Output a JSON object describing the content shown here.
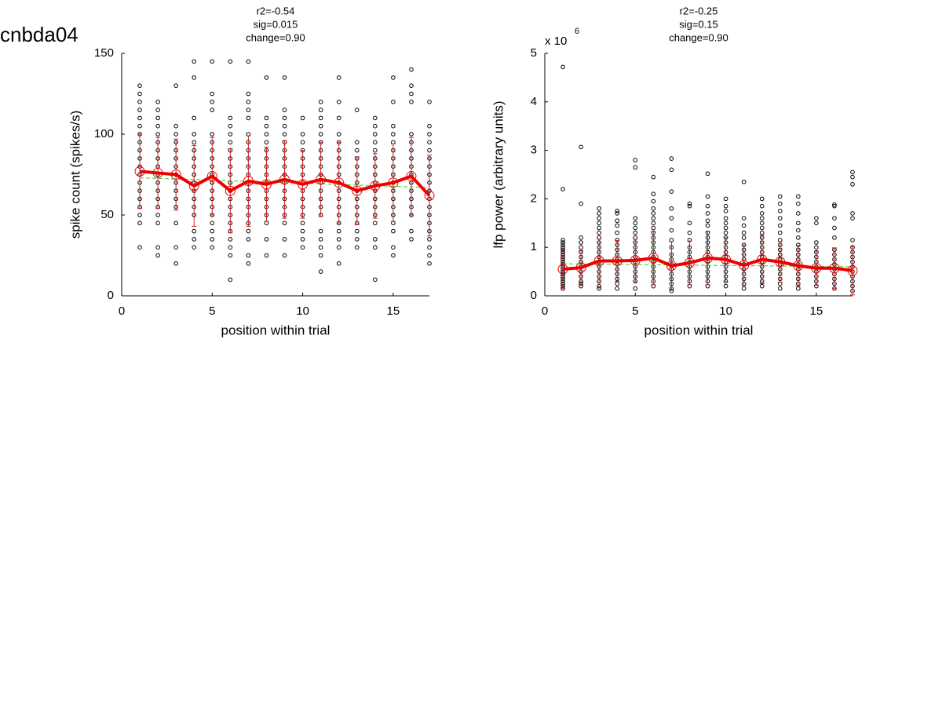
{
  "figure_title": "cnbda04",
  "chart_data": [
    {
      "type": "scatter",
      "title": [
        "r2=-0.54",
        "sig=0.015",
        "change=0.90"
      ],
      "x_label": "position within trial",
      "y_label": "spike count (spikes/s)",
      "xlim": [
        0,
        17
      ],
      "xticks": [
        0,
        5,
        10,
        15
      ],
      "ylim": [
        0,
        150
      ],
      "yticks": [
        0,
        50,
        100,
        150
      ],
      "x": [
        1,
        2,
        3,
        4,
        5,
        6,
        7,
        8,
        9,
        10,
        11,
        12,
        13,
        14,
        15,
        16,
        17
      ],
      "points": [
        [
          30,
          45,
          50,
          55,
          60,
          65,
          70,
          75,
          80,
          85,
          90,
          95,
          100,
          105,
          110,
          115,
          120,
          125,
          130
        ],
        [
          25,
          30,
          45,
          50,
          55,
          60,
          65,
          70,
          75,
          80,
          85,
          90,
          95,
          100,
          105,
          110,
          115,
          120
        ],
        [
          20,
          30,
          45,
          55,
          60,
          65,
          70,
          75,
          80,
          85,
          90,
          95,
          100,
          105,
          130
        ],
        [
          30,
          35,
          40,
          50,
          55,
          60,
          65,
          70,
          75,
          80,
          85,
          90,
          95,
          100,
          110,
          135,
          145
        ],
        [
          30,
          35,
          40,
          45,
          50,
          55,
          60,
          65,
          70,
          75,
          80,
          85,
          90,
          95,
          100,
          115,
          120,
          125,
          145
        ],
        [
          10,
          25,
          30,
          35,
          40,
          45,
          50,
          55,
          60,
          65,
          70,
          75,
          80,
          85,
          90,
          95,
          100,
          105,
          110,
          145
        ],
        [
          20,
          25,
          35,
          40,
          45,
          50,
          55,
          60,
          65,
          70,
          75,
          80,
          85,
          90,
          95,
          100,
          110,
          115,
          120,
          125,
          145
        ],
        [
          25,
          35,
          45,
          50,
          55,
          60,
          65,
          70,
          75,
          80,
          85,
          90,
          95,
          100,
          105,
          110,
          135
        ],
        [
          25,
          35,
          45,
          50,
          55,
          60,
          65,
          70,
          75,
          80,
          85,
          90,
          95,
          100,
          105,
          110,
          115,
          135
        ],
        [
          30,
          35,
          40,
          45,
          50,
          55,
          60,
          65,
          70,
          75,
          80,
          85,
          90,
          95,
          100,
          110
        ],
        [
          15,
          25,
          30,
          35,
          40,
          50,
          55,
          60,
          65,
          70,
          75,
          80,
          85,
          90,
          95,
          100,
          105,
          110,
          115,
          120
        ],
        [
          20,
          30,
          35,
          40,
          45,
          50,
          55,
          60,
          65,
          70,
          75,
          80,
          85,
          90,
          95,
          100,
          110,
          120,
          135
        ],
        [
          30,
          35,
          40,
          45,
          50,
          55,
          60,
          65,
          70,
          75,
          80,
          85,
          90,
          95,
          115
        ],
        [
          10,
          30,
          35,
          45,
          50,
          55,
          60,
          65,
          70,
          75,
          80,
          85,
          90,
          95,
          100,
          105,
          110
        ],
        [
          25,
          30,
          40,
          45,
          50,
          55,
          60,
          65,
          70,
          75,
          80,
          85,
          90,
          95,
          100,
          105,
          120,
          135
        ],
        [
          35,
          40,
          50,
          55,
          60,
          65,
          70,
          75,
          80,
          85,
          90,
          95,
          100,
          120,
          125,
          130,
          140
        ],
        [
          20,
          25,
          30,
          35,
          40,
          45,
          50,
          55,
          60,
          65,
          70,
          75,
          80,
          85,
          90,
          95,
          100,
          105,
          120
        ]
      ],
      "mean": [
        77,
        76,
        75,
        68,
        74,
        65,
        71,
        69,
        72,
        69,
        72,
        70,
        65,
        68,
        70,
        74,
        62
      ],
      "error": [
        23,
        22,
        22,
        25,
        24,
        26,
        28,
        23,
        24,
        21,
        23,
        25,
        21,
        20,
        24,
        24,
        25
      ],
      "fit_x": [
        1,
        17
      ],
      "fit": [
        73,
        67
      ],
      "point_color": "#000000",
      "mean_color": "#ee0000",
      "error_color": "#cc2222",
      "fit_color": "#33cc33"
    },
    {
      "type": "scatter",
      "title": [
        "r2=-0.25",
        "sig=0.15",
        "change=0.90"
      ],
      "x_label": "position within trial",
      "y_label": "lfp power (arbitrary units)",
      "y_multiplier": "x 10",
      "y_exponent": 6,
      "xlim": [
        0,
        17
      ],
      "xticks": [
        0,
        5,
        10,
        15
      ],
      "ylim": [
        0,
        5
      ],
      "yticks": [
        0,
        1,
        2,
        3,
        4,
        5
      ],
      "x": [
        1,
        2,
        3,
        4,
        5,
        6,
        7,
        8,
        9,
        10,
        11,
        12,
        13,
        14,
        15,
        16,
        17
      ],
      "points": [
        [
          0.15,
          0.2,
          0.25,
          0.3,
          0.35,
          0.4,
          0.45,
          0.5,
          0.55,
          0.6,
          0.65,
          0.7,
          0.75,
          0.8,
          0.85,
          0.9,
          0.95,
          1.0,
          1.05,
          1.1,
          1.15,
          2.2,
          4.72
        ],
        [
          0.2,
          0.25,
          0.3,
          0.4,
          0.5,
          0.6,
          0.7,
          0.8,
          0.9,
          1.0,
          1.1,
          1.2,
          1.9,
          3.07
        ],
        [
          0.15,
          0.2,
          0.3,
          0.4,
          0.5,
          0.6,
          0.7,
          0.8,
          0.9,
          1.0,
          1.1,
          1.2,
          1.3,
          1.4,
          1.5,
          1.6,
          1.7,
          1.8
        ],
        [
          0.15,
          0.25,
          0.35,
          0.45,
          0.55,
          0.65,
          0.75,
          0.85,
          0.95,
          1.05,
          1.15,
          1.3,
          1.45,
          1.55,
          1.7,
          1.75
        ],
        [
          0.15,
          0.3,
          0.4,
          0.5,
          0.6,
          0.7,
          0.8,
          0.9,
          1.0,
          1.1,
          1.2,
          1.3,
          1.4,
          1.5,
          1.6,
          2.65,
          2.8
        ],
        [
          0.2,
          0.3,
          0.4,
          0.5,
          0.6,
          0.7,
          0.8,
          0.9,
          1.0,
          1.1,
          1.2,
          1.3,
          1.4,
          1.5,
          1.6,
          1.7,
          1.8,
          1.95,
          2.1,
          2.45
        ],
        [
          0.1,
          0.15,
          0.25,
          0.35,
          0.45,
          0.55,
          0.65,
          0.75,
          0.85,
          1.0,
          1.15,
          1.35,
          1.6,
          1.8,
          2.15,
          2.6,
          2.83
        ],
        [
          0.2,
          0.3,
          0.4,
          0.5,
          0.6,
          0.7,
          0.8,
          0.9,
          1.0,
          1.15,
          1.3,
          1.5,
          1.85,
          1.9
        ],
        [
          0.2,
          0.3,
          0.4,
          0.5,
          0.6,
          0.7,
          0.8,
          0.9,
          1.0,
          1.1,
          1.2,
          1.3,
          1.45,
          1.55,
          1.7,
          1.85,
          2.05,
          2.52
        ],
        [
          0.2,
          0.3,
          0.4,
          0.5,
          0.6,
          0.7,
          0.8,
          0.9,
          1.0,
          1.1,
          1.2,
          1.3,
          1.4,
          1.5,
          1.6,
          1.75,
          1.85,
          2.0
        ],
        [
          0.15,
          0.25,
          0.35,
          0.45,
          0.55,
          0.65,
          0.75,
          0.85,
          0.95,
          1.05,
          1.2,
          1.3,
          1.45,
          1.6,
          2.35
        ],
        [
          0.2,
          0.3,
          0.4,
          0.5,
          0.6,
          0.7,
          0.8,
          0.9,
          1.0,
          1.1,
          1.2,
          1.3,
          1.4,
          1.5,
          1.6,
          1.7,
          1.85,
          2.0
        ],
        [
          0.15,
          0.25,
          0.35,
          0.45,
          0.55,
          0.65,
          0.75,
          0.85,
          0.95,
          1.05,
          1.15,
          1.3,
          1.45,
          1.6,
          1.75,
          1.9,
          2.05
        ],
        [
          0.15,
          0.25,
          0.35,
          0.45,
          0.55,
          0.65,
          0.75,
          0.85,
          0.95,
          1.05,
          1.2,
          1.35,
          1.5,
          1.7,
          1.9,
          2.05
        ],
        [
          0.2,
          0.3,
          0.4,
          0.5,
          0.6,
          0.7,
          0.8,
          0.9,
          1.0,
          1.1,
          1.5,
          1.6
        ],
        [
          0.15,
          0.25,
          0.35,
          0.45,
          0.55,
          0.65,
          0.75,
          0.85,
          0.95,
          1.2,
          1.4,
          1.6,
          1.85,
          1.88
        ],
        [
          0.1,
          0.2,
          0.3,
          0.4,
          0.5,
          0.6,
          0.7,
          0.8,
          0.9,
          1.0,
          1.15,
          1.6,
          1.7,
          2.3,
          2.45,
          2.55
        ]
      ],
      "mean": [
        0.55,
        0.58,
        0.72,
        0.72,
        0.73,
        0.78,
        0.62,
        0.68,
        0.78,
        0.75,
        0.63,
        0.75,
        0.7,
        0.62,
        0.57,
        0.57,
        0.52
      ],
      "error": [
        0.4,
        0.36,
        0.45,
        0.42,
        0.44,
        0.55,
        0.5,
        0.45,
        0.55,
        0.45,
        0.42,
        0.5,
        0.42,
        0.42,
        0.35,
        0.42,
        0.5
      ],
      "fit_x": [
        1,
        17
      ],
      "fit": [
        0.66,
        0.6
      ],
      "point_color": "#000000",
      "mean_color": "#ee0000",
      "error_color": "#cc2222",
      "fit_color": "#33cc33"
    }
  ]
}
